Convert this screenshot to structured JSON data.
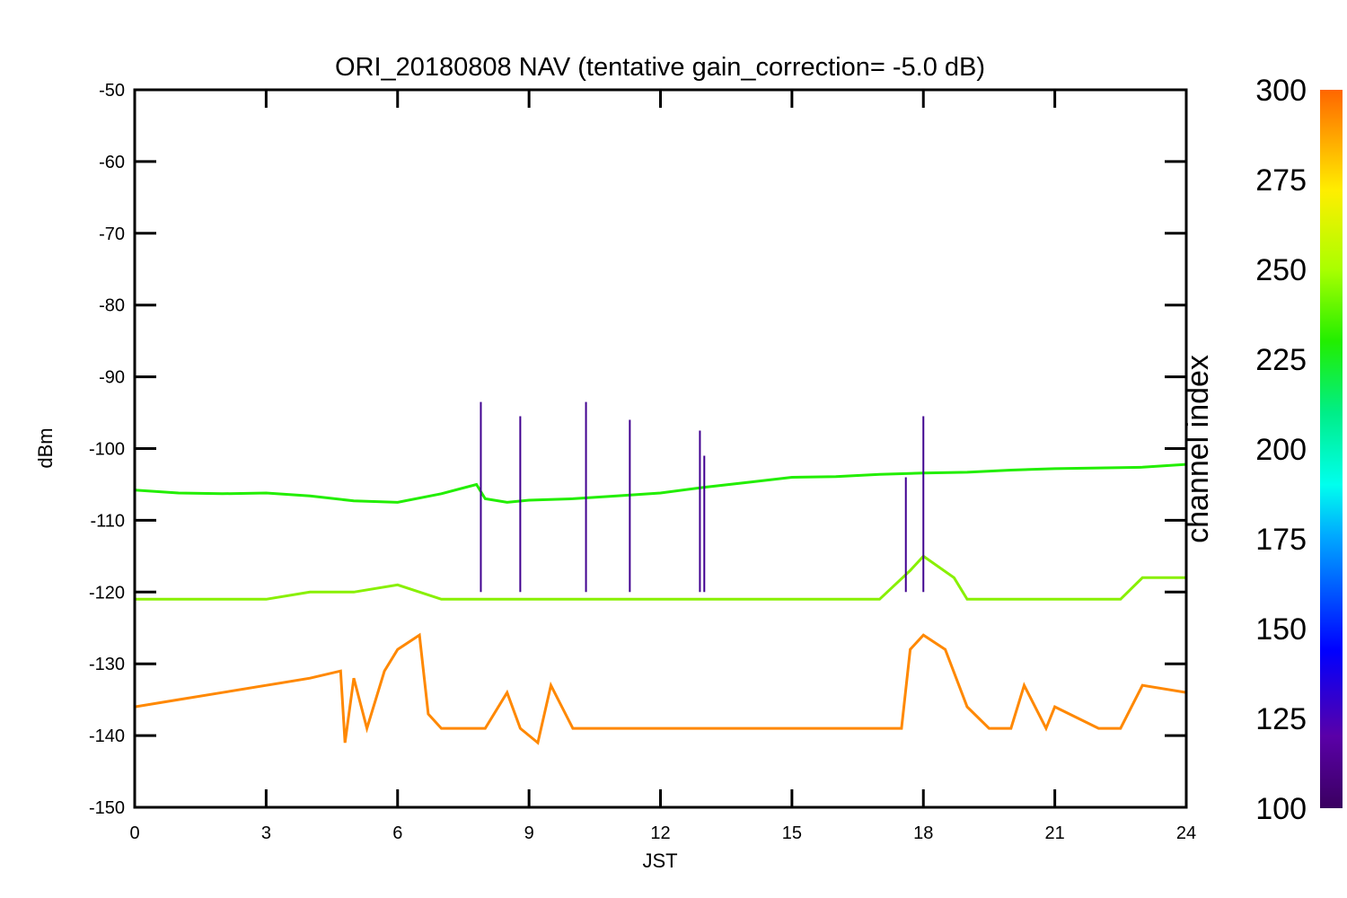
{
  "chart_data": {
    "type": "line",
    "title": "ORI_20180808 NAV (tentative gain_correction= -5.0 dB)",
    "xlabel": "JST",
    "ylabel": "dBm",
    "xlim": [
      0,
      24
    ],
    "ylim": [
      -150,
      -50
    ],
    "xticks": [
      0,
      3,
      6,
      9,
      12,
      15,
      18,
      21,
      24
    ],
    "yticks": [
      -50,
      -60,
      -70,
      -80,
      -90,
      -100,
      -110,
      -120,
      -130,
      -140,
      -150
    ],
    "grid": false,
    "colorbar": {
      "label": "channel index",
      "range": [
        100,
        300
      ],
      "ticks": [
        300,
        275,
        250,
        225,
        200,
        175,
        150,
        125,
        100
      ]
    },
    "series": [
      {
        "channel": 230,
        "color": "#22ee00",
        "x": [
          0,
          1,
          2,
          3,
          4,
          5,
          6,
          7,
          7.8,
          8,
          8.5,
          9,
          10,
          11,
          12,
          13,
          14,
          15,
          16,
          17,
          18,
          19,
          20,
          21,
          22,
          23,
          24
        ],
        "y": [
          -105.8,
          -106.2,
          -106.3,
          -106.2,
          -106.6,
          -107.3,
          -107.5,
          -106.3,
          -105.0,
          -107.0,
          -107.5,
          -107.2,
          -107.0,
          -106.6,
          -106.2,
          -105.4,
          -104.7,
          -104.0,
          -103.9,
          -103.6,
          -103.4,
          -103.3,
          -103.0,
          -102.8,
          -102.7,
          -102.6,
          -102.2
        ]
      },
      {
        "channel": 260,
        "color": "#88f000",
        "x": [
          0,
          1,
          2,
          3,
          4,
          5,
          6,
          7,
          8,
          9,
          10,
          11,
          12,
          13,
          14,
          15,
          16,
          17,
          17.7,
          18,
          18.7,
          19,
          20,
          21,
          22,
          22.5,
          23,
          24
        ],
        "y": [
          -121,
          -121,
          -121,
          -121,
          -120,
          -120,
          -119,
          -121,
          -121,
          -121,
          -121,
          -121,
          -121,
          -121,
          -121,
          -121,
          -121,
          -121,
          -117,
          -115,
          -118,
          -121,
          -121,
          -121,
          -121,
          -121,
          -118,
          -118
        ]
      },
      {
        "channel": 290,
        "color": "#ff8800",
        "x": [
          0,
          1,
          2,
          3,
          4,
          4.7,
          4.8,
          5.0,
          5.3,
          5.7,
          6.0,
          6.5,
          6.7,
          7,
          8,
          8.5,
          8.8,
          9.2,
          9.5,
          10,
          11,
          12,
          13,
          14,
          15,
          16,
          17,
          17.5,
          17.7,
          18,
          18.5,
          19,
          19.5,
          20,
          20.3,
          20.8,
          21,
          22,
          22.5,
          23,
          24
        ],
        "y": [
          -136,
          -135,
          -134,
          -133,
          -132,
          -131,
          -141,
          -132,
          -139,
          -131,
          -128,
          -126,
          -137,
          -139,
          -139,
          -134,
          -139,
          -141,
          -133,
          -139,
          -139,
          -139,
          -139,
          -139,
          -139,
          -139,
          -139,
          -139,
          -128,
          -126,
          -128,
          -136,
          -139,
          -139,
          -133,
          -139,
          -136,
          -139,
          -139,
          -133,
          -134
        ]
      }
    ],
    "spikes": {
      "color": "#400090",
      "x": [
        7.9,
        8.8,
        10.3,
        11.3,
        12.9,
        13.0,
        17.6,
        18.0
      ],
      "y": [
        -93.5,
        -95.5,
        -93.5,
        -96.0,
        -97.5,
        -101.0,
        -104.0,
        -95.5
      ]
    }
  }
}
